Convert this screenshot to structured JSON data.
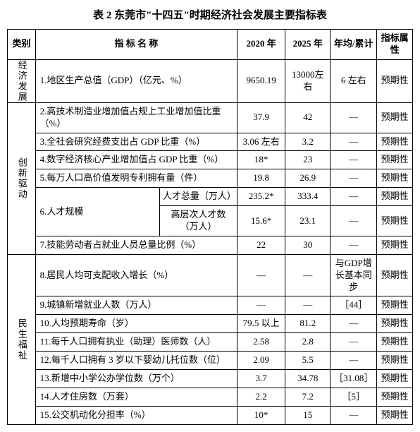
{
  "title": "表 2   东莞市\"十四五\"时期经济社会发展主要指标表",
  "header": {
    "category": "类别",
    "indicator": "指 标  名 称",
    "y2020": "2020 年",
    "y2025": "2025 年",
    "avg": "年均/累计",
    "attr": "指标属性"
  },
  "cat": {
    "econ": "经济发展",
    "innov": "创新驱动",
    "welfare": "民生福祉"
  },
  "r1": {
    "name": "1.地区生产总值（GDP）（亿元、%）",
    "y2020": "9650.19",
    "y2025": "13000左右",
    "avg": "6 左右",
    "attr": "预期性"
  },
  "r2": {
    "name": "2.高技术制造业增加值占规上工业增加值比重（%）",
    "y2020": "37.9",
    "y2025": "42",
    "avg": "—",
    "attr": "预期性"
  },
  "r3": {
    "name": "3.全社会研究经费支出占 GDP 比重（%）",
    "y2020": "3.06 左右",
    "y2025": "3.2",
    "avg": "—",
    "attr": "预期性"
  },
  "r4": {
    "name": "4.数字经济核心产业增加值占 GDP 比重（%）",
    "y2020": "18*",
    "y2025": "23",
    "avg": "—",
    "attr": "预期性"
  },
  "r5": {
    "name": "5.每万人口高价值发明专利拥有量（件）",
    "y2020": "19.8",
    "y2025": "26.9",
    "avg": "—",
    "attr": "预期性"
  },
  "r6": {
    "name": "6.人才规模",
    "sub1": "人才总量（万人）",
    "sub2": "高层次人才数（万人）",
    "s1y2020": "235.2*",
    "s1y2025": "333.4",
    "s1avg": "—",
    "s1attr": "预期性",
    "s2y2020": "15.6*",
    "s2y2025": "23.1",
    "s2avg": "—",
    "s2attr": "预期性"
  },
  "r7": {
    "name": "7.技能劳动者占就业人员总量比例（%）",
    "y2020": "22",
    "y2025": "30",
    "avg": "—",
    "attr": "预期性"
  },
  "r8": {
    "name": "8.居民人均可支配收入增长（%）",
    "y2020": "—",
    "y2025": "—",
    "avg": "与GDP增长基本同步",
    "attr": "预期性"
  },
  "r9": {
    "name": "9.城镇新增就业人数（万人）",
    "y2020": "—",
    "y2025": "—",
    "avg": "［44］",
    "attr": "预期性"
  },
  "r10": {
    "name": "10.人均预期寿命（岁）",
    "y2020": "79.5 以上",
    "y2025": "81.2",
    "avg": "—",
    "attr": "预期性"
  },
  "r11": {
    "name": "11.每千人口拥有执业（助理）医师数（人）",
    "y2020": "2.58",
    "y2025": "2.8",
    "avg": "—",
    "attr": "预期性"
  },
  "r12": {
    "name": "12.每千人口拥有 3 岁以下婴幼儿托位数（位）",
    "y2020": "2.09",
    "y2025": "5.5",
    "avg": "—",
    "attr": "预期性"
  },
  "r13": {
    "name": "13.新增中小学公办学位数（万个）",
    "y2020": "3.7",
    "y2025": "34.78",
    "avg": "［31.08］",
    "attr": "预期性"
  },
  "r14": {
    "name": "14.人才住房数（万套）",
    "y2020": "2.2",
    "y2025": "7.2",
    "avg": "［5］",
    "attr": "预期性"
  },
  "r15": {
    "name": "15.公交机动化分担率（%）",
    "y2020": "10*",
    "y2025": "15",
    "avg": "—",
    "attr": "预期性"
  }
}
